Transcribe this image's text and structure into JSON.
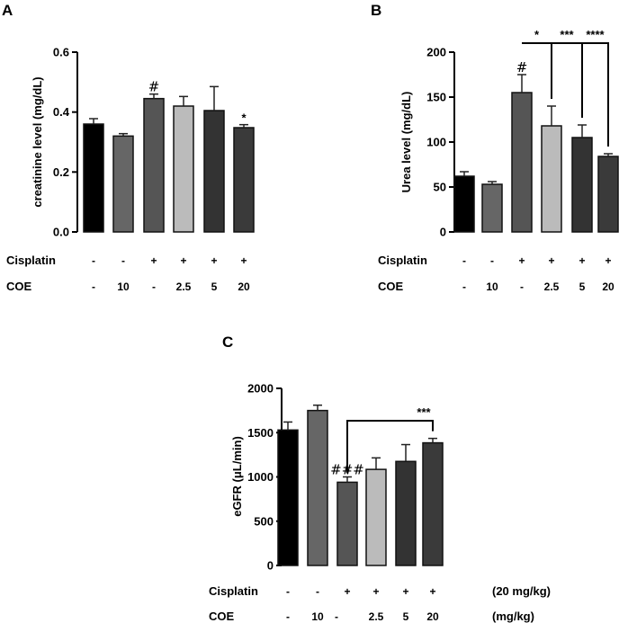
{
  "figure": {
    "row_labels": {
      "cisplatin": "Cisplatin",
      "coe": "COE"
    },
    "cisplatin_signs": [
      "-",
      "-",
      "+",
      "+",
      "+",
      "+"
    ],
    "coe_values": [
      "-",
      "10",
      "-",
      "2.5",
      "5",
      "20"
    ],
    "units": {
      "cisplatin": "(20 mg/kg)",
      "coe": "(mg/kg)"
    },
    "bar_colors": [
      "#000000",
      "#666666",
      "#555555",
      "#bbbbbb",
      "#333333",
      "#3a3a3a"
    ]
  },
  "chart_data": [
    {
      "panel": "A",
      "type": "bar",
      "title": "",
      "xlabel": "",
      "ylabel": "creatinine level (mg/dL)",
      "ylim": [
        0,
        0.6
      ],
      "yticks": [
        "0.0",
        "0.2",
        "0.4",
        "0.6"
      ],
      "ytick_values": [
        0,
        0.2,
        0.4,
        0.6
      ],
      "values": [
        0.36,
        0.32,
        0.445,
        0.42,
        0.405,
        0.348
      ],
      "errors": [
        0.018,
        0.008,
        0.015,
        0.032,
        0.08,
        0.01
      ],
      "annotations": [
        {
          "bar": 2,
          "text": "#"
        },
        {
          "bar": 5,
          "text": "*"
        }
      ],
      "brackets": []
    },
    {
      "panel": "B",
      "type": "bar",
      "title": "",
      "xlabel": "",
      "ylabel": "Urea level (mg/dL)",
      "ylim": [
        0,
        200
      ],
      "yticks": [
        "0",
        "50",
        "100",
        "150",
        "200"
      ],
      "ytick_values": [
        0,
        50,
        100,
        150,
        200
      ],
      "values": [
        62,
        53,
        155,
        118,
        105,
        84
      ],
      "errors": [
        5,
        3,
        20,
        22,
        14,
        3
      ],
      "annotations": [
        {
          "bar": 2,
          "text": "#"
        }
      ],
      "brackets": [
        {
          "from": 2,
          "to": 3,
          "text": "*"
        },
        {
          "from": 3,
          "to": 4,
          "text": "***"
        },
        {
          "from": 4,
          "to": 5,
          "text": "****"
        }
      ]
    },
    {
      "panel": "C",
      "type": "bar",
      "title": "",
      "xlabel": "",
      "ylabel": "eGFR (μL/min)",
      "ylim": [
        0,
        2000
      ],
      "yticks": [
        "0",
        "500",
        "1000",
        "1500",
        "2000"
      ],
      "ytick_values": [
        0,
        500,
        1000,
        1500,
        2000
      ],
      "values": [
        1530,
        1750,
        940,
        1085,
        1175,
        1385
      ],
      "errors": [
        90,
        60,
        60,
        130,
        190,
        50
      ],
      "annotations": [
        {
          "bar": 2,
          "text": "###"
        }
      ],
      "brackets": [
        {
          "from": 2,
          "to": 5,
          "text": "***"
        }
      ]
    }
  ]
}
